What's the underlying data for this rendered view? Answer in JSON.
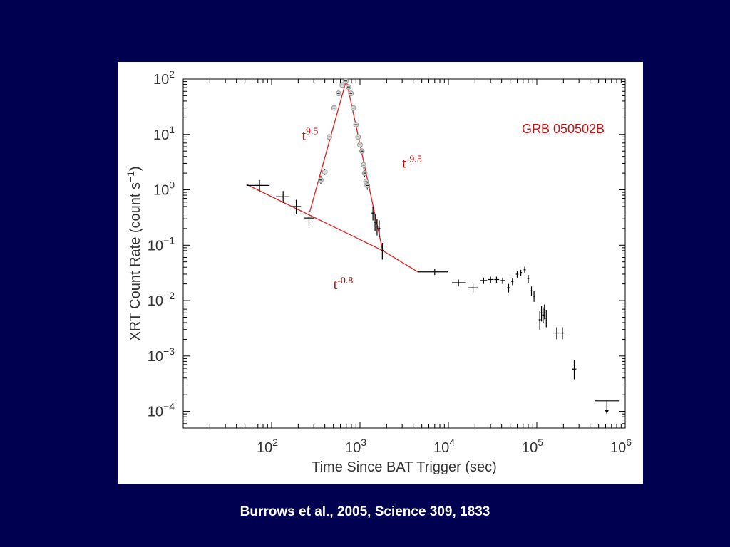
{
  "slide": {
    "background": "#000050",
    "citation": "Burrows et al., 2005, Science 309, 1833"
  },
  "chart_data": {
    "type": "scatter",
    "title": "GRB 050502B",
    "xlabel": "Time Since BAT Trigger (sec)",
    "ylabel": "XRT Count Rate (count s",
    "ylabel_sup": "−1",
    "ylabel_close": ")",
    "x_scale": "log",
    "y_scale": "log",
    "xlim": [
      10,
      1000000
    ],
    "ylim": [
      5e-05,
      100
    ],
    "x_ticks": [
      {
        "value": 100,
        "base": "10",
        "exp": "2"
      },
      {
        "value": 1000,
        "base": "10",
        "exp": "3"
      },
      {
        "value": 10000,
        "base": "10",
        "exp": "4"
      },
      {
        "value": 100000,
        "base": "10",
        "exp": "5"
      },
      {
        "value": 1000000,
        "base": "10",
        "exp": "6"
      }
    ],
    "y_ticks": [
      {
        "value": 0.0001,
        "base": "10",
        "exp": "−4"
      },
      {
        "value": 0.001,
        "base": "10",
        "exp": "−3"
      },
      {
        "value": 0.01,
        "base": "10",
        "exp": "−2"
      },
      {
        "value": 0.1,
        "base": "10",
        "exp": "−1"
      },
      {
        "value": 1,
        "base": "10",
        "exp": "0"
      },
      {
        "value": 10,
        "base": "10",
        "exp": "1"
      },
      {
        "value": 100,
        "base": "10",
        "exp": "2"
      }
    ],
    "grid": false,
    "points": [
      {
        "x": 73,
        "y": 1.2,
        "xlo": 52,
        "xhi": 95,
        "ylo": 0.95,
        "yhi": 1.5
      },
      {
        "x": 135,
        "y": 0.75,
        "xlo": 112,
        "xhi": 160,
        "ylo": 0.58,
        "yhi": 0.95
      },
      {
        "x": 190,
        "y": 0.5,
        "xlo": 168,
        "xhi": 215,
        "ylo": 0.36,
        "yhi": 0.66
      },
      {
        "x": 265,
        "y": 0.31,
        "xlo": 230,
        "xhi": 300,
        "ylo": 0.22,
        "yhi": 0.42
      },
      {
        "x": 1400,
        "y": 0.38,
        "xlo": 1350,
        "xhi": 1450,
        "ylo": 0.28,
        "yhi": 0.5
      },
      {
        "x": 1480,
        "y": 0.26,
        "xlo": 1430,
        "xhi": 1530,
        "ylo": 0.18,
        "yhi": 0.36
      },
      {
        "x": 1560,
        "y": 0.22,
        "xlo": 1510,
        "xhi": 1610,
        "ylo": 0.15,
        "yhi": 0.3
      },
      {
        "x": 1650,
        "y": 0.2,
        "xlo": 1600,
        "xhi": 1700,
        "ylo": 0.14,
        "yhi": 0.28
      },
      {
        "x": 1790,
        "y": 0.08,
        "xlo": 1720,
        "xhi": 1860,
        "ylo": 0.055,
        "yhi": 0.11
      },
      {
        "x": 7000,
        "y": 0.033,
        "xlo": 4500,
        "xhi": 10000,
        "ylo": 0.029,
        "yhi": 0.037
      },
      {
        "x": 13000,
        "y": 0.021,
        "xlo": 11000,
        "xhi": 15500,
        "ylo": 0.018,
        "yhi": 0.024
      },
      {
        "x": 19000,
        "y": 0.017,
        "xlo": 16500,
        "xhi": 21500,
        "ylo": 0.014,
        "yhi": 0.02
      },
      {
        "x": 25000,
        "y": 0.023,
        "xlo": 23000,
        "xhi": 27500,
        "ylo": 0.02,
        "yhi": 0.026
      },
      {
        "x": 30000,
        "y": 0.024,
        "xlo": 28000,
        "xhi": 32500,
        "ylo": 0.021,
        "yhi": 0.027
      },
      {
        "x": 35000,
        "y": 0.024,
        "xlo": 33000,
        "xhi": 37500,
        "ylo": 0.021,
        "yhi": 0.027
      },
      {
        "x": 41000,
        "y": 0.023,
        "xlo": 39000,
        "xhi": 43500,
        "ylo": 0.02,
        "yhi": 0.026
      },
      {
        "x": 48000,
        "y": 0.017,
        "xlo": 46000,
        "xhi": 50000,
        "ylo": 0.014,
        "yhi": 0.02
      },
      {
        "x": 53000,
        "y": 0.022,
        "xlo": 51500,
        "xhi": 54500,
        "ylo": 0.019,
        "yhi": 0.025
      },
      {
        "x": 60000,
        "y": 0.03,
        "xlo": 58000,
        "xhi": 62000,
        "ylo": 0.026,
        "yhi": 0.034
      },
      {
        "x": 66000,
        "y": 0.032,
        "xlo": 64000,
        "xhi": 68000,
        "ylo": 0.028,
        "yhi": 0.036
      },
      {
        "x": 73000,
        "y": 0.036,
        "xlo": 71000,
        "xhi": 75000,
        "ylo": 0.031,
        "yhi": 0.041
      },
      {
        "x": 80000,
        "y": 0.025,
        "xlo": 78000,
        "xhi": 82000,
        "ylo": 0.021,
        "yhi": 0.029
      },
      {
        "x": 87000,
        "y": 0.015,
        "xlo": 85000,
        "xhi": 89000,
        "ylo": 0.012,
        "yhi": 0.018
      },
      {
        "x": 93000,
        "y": 0.012,
        "xlo": 91000,
        "xhi": 95000,
        "ylo": 0.0095,
        "yhi": 0.015
      },
      {
        "x": 108000,
        "y": 0.0045,
        "xlo": 105000,
        "xhi": 111000,
        "ylo": 0.003,
        "yhi": 0.0065
      },
      {
        "x": 113000,
        "y": 0.006,
        "xlo": 110000,
        "xhi": 116000,
        "ylo": 0.0042,
        "yhi": 0.008
      },
      {
        "x": 118000,
        "y": 0.0055,
        "xlo": 115000,
        "xhi": 121000,
        "ylo": 0.004,
        "yhi": 0.0075
      },
      {
        "x": 122000,
        "y": 0.0065,
        "xlo": 119000,
        "xhi": 125000,
        "ylo": 0.0046,
        "yhi": 0.0085
      },
      {
        "x": 128000,
        "y": 0.0048,
        "xlo": 125000,
        "xhi": 131000,
        "ylo": 0.0033,
        "yhi": 0.0068
      },
      {
        "x": 168000,
        "y": 0.0026,
        "xlo": 155000,
        "xhi": 180000,
        "ylo": 0.002,
        "yhi": 0.0033
      },
      {
        "x": 195000,
        "y": 0.0026,
        "xlo": 182000,
        "xhi": 208000,
        "ylo": 0.002,
        "yhi": 0.0033
      },
      {
        "x": 265000,
        "y": 0.00058,
        "xlo": 250000,
        "xhi": 280000,
        "ylo": 0.00038,
        "yhi": 0.00085
      }
    ],
    "upper_limits": [
      {
        "x": 620000,
        "y": 0.000155,
        "xlo": 450000,
        "xhi": 850000,
        "ymin": 9e-05
      }
    ],
    "flare_points": [
      {
        "x": 360,
        "y": 1.5,
        "ylo": 1.25,
        "yhi": 1.8
      },
      {
        "x": 400,
        "y": 2.1,
        "ylo": 1.85,
        "yhi": 2.4
      },
      {
        "x": 450,
        "y": 9,
        "ylo": 8,
        "yhi": 10
      },
      {
        "x": 510,
        "y": 30,
        "ylo": 27,
        "yhi": 33
      },
      {
        "x": 570,
        "y": 55,
        "ylo": 50,
        "yhi": 60
      },
      {
        "x": 630,
        "y": 78,
        "ylo": 72,
        "yhi": 84
      },
      {
        "x": 690,
        "y": 92,
        "ylo": 86,
        "yhi": 98
      },
      {
        "x": 740,
        "y": 72,
        "ylo": 66,
        "yhi": 78
      },
      {
        "x": 790,
        "y": 55,
        "ylo": 50,
        "yhi": 60
      },
      {
        "x": 840,
        "y": 30,
        "ylo": 27,
        "yhi": 33
      },
      {
        "x": 900,
        "y": 15,
        "ylo": 13.5,
        "yhi": 16.5
      },
      {
        "x": 950,
        "y": 9,
        "ylo": 8,
        "yhi": 10
      },
      {
        "x": 1000,
        "y": 6.5,
        "ylo": 5.8,
        "yhi": 7.2
      },
      {
        "x": 1050,
        "y": 5,
        "ylo": 4.4,
        "yhi": 5.6
      },
      {
        "x": 1100,
        "y": 2.8,
        "ylo": 2.4,
        "yhi": 3.2
      },
      {
        "x": 1130,
        "y": 2,
        "ylo": 1.7,
        "yhi": 2.3
      },
      {
        "x": 1170,
        "y": 1.4,
        "ylo": 1.2,
        "yhi": 1.6
      },
      {
        "x": 1210,
        "y": 1.2,
        "ylo": 1.0,
        "yhi": 1.4
      }
    ],
    "model_lines": [
      {
        "name": "rise",
        "points": [
          [
            270,
            0.4
          ],
          [
            700,
            95
          ]
        ]
      },
      {
        "name": "decay",
        "points": [
          [
            700,
            95
          ],
          [
            1800,
            0.08
          ]
        ]
      },
      {
        "name": "underlying",
        "points": [
          [
            52,
            1.25
          ],
          [
            1800,
            0.08
          ],
          [
            4500,
            0.033
          ]
        ]
      }
    ],
    "annotations": [
      {
        "base": "t",
        "exp": "9.5",
        "x": 220,
        "y": 8
      },
      {
        "base": "t",
        "exp": "-9.5",
        "x": 3000,
        "y": 2.5
      },
      {
        "base": "t",
        "exp": "-0.8",
        "x": 500,
        "y": 0.016
      }
    ],
    "colors": {
      "data": "#000000",
      "model": "#e0201e",
      "flare_marker": "#9a9a9a",
      "label": "#cc1111"
    }
  }
}
